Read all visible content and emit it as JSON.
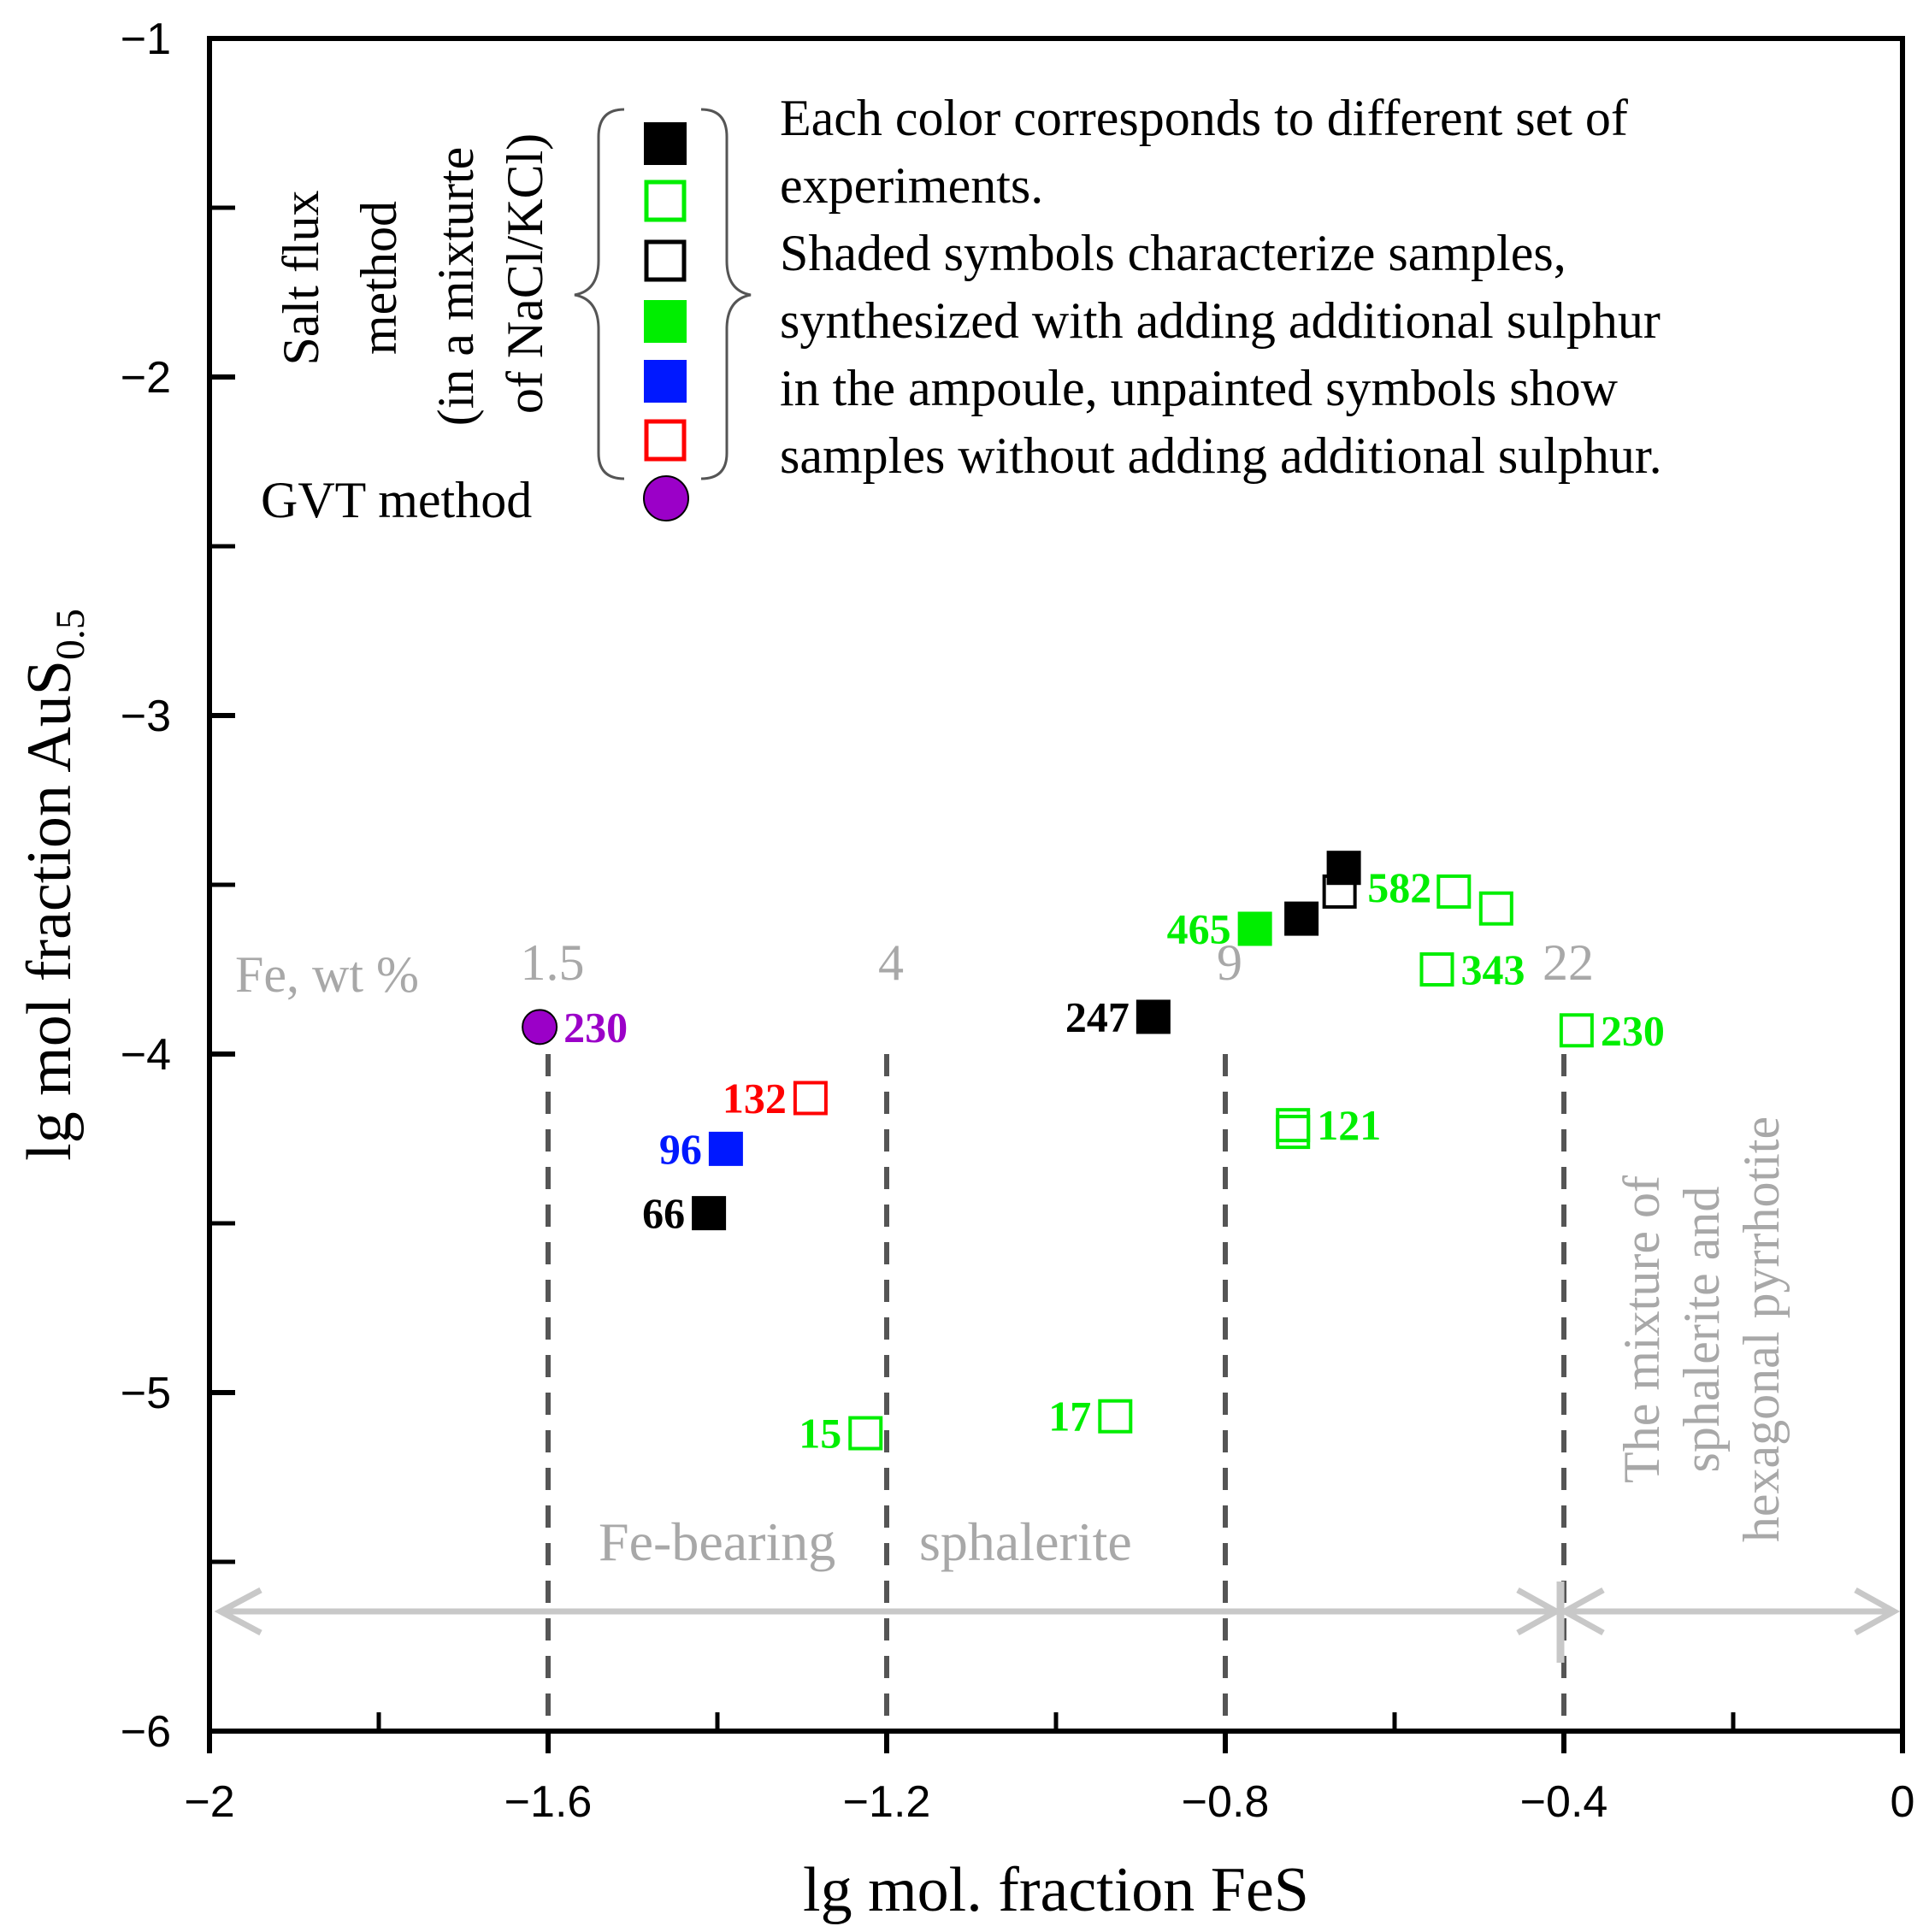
{
  "chart_data": {
    "type": "scatter",
    "title": "",
    "xlabel": "lg mol. fraction FeS",
    "ylabel_main": "lg mol fraction AuS",
    "ylabel_sub": "0.5",
    "xlim": [
      -2,
      0
    ],
    "ylim": [
      -6,
      -1
    ],
    "x_ticks": [
      "−2",
      "−1.6",
      "−1.2",
      "−0.8",
      "−0.4",
      "0"
    ],
    "x_tick_values": [
      -2,
      -1.6,
      -1.2,
      -0.8,
      -0.4,
      0
    ],
    "y_ticks": [
      "−1",
      "−2",
      "−3",
      "−4",
      "−5",
      "−6"
    ],
    "y_tick_values": [
      -1,
      -2,
      -3,
      -4,
      -5,
      -6
    ],
    "y_minor_tick_values": [
      -1.5,
      -2.5,
      -3.5,
      -4.5,
      -5.5
    ],
    "x_minor_tick_values": [
      -1.8,
      -1.4,
      -1.0,
      -0.6,
      -0.2
    ],
    "grid": false,
    "colors": {
      "black": "#000000",
      "green": "#00ee00",
      "blue": "#0018ff",
      "red": "#ff0000",
      "purple": "#9b00c8",
      "annotation_gray": "#a8a8a8",
      "dashed": "#555555"
    },
    "series": [
      {
        "name": "black filled",
        "marker": "square",
        "color": "#000000",
        "filled": true,
        "points": [
          {
            "x": -1.41,
            "y": -4.47,
            "label": "66"
          },
          {
            "x": -0.885,
            "y": -3.89,
            "label": "247"
          },
          {
            "x": -0.71,
            "y": -3.6,
            "label": ""
          },
          {
            "x": -0.66,
            "y": -3.45,
            "label": ""
          }
        ]
      },
      {
        "name": "green open",
        "marker": "square",
        "color": "#00ee00",
        "filled": false,
        "points": [
          {
            "x": -1.225,
            "y": -5.12,
            "label": "15"
          },
          {
            "x": -0.93,
            "y": -5.07,
            "label": "17"
          },
          {
            "x": -0.72,
            "y": -4.21,
            "label": "121"
          },
          {
            "x": -0.72,
            "y": -4.23,
            "label": ""
          },
          {
            "x": -0.55,
            "y": -3.75,
            "label": "343"
          },
          {
            "x": -0.53,
            "y": -3.52,
            "label": "582"
          },
          {
            "x": -0.48,
            "y": -3.57,
            "label": ""
          },
          {
            "x": -0.385,
            "y": -3.93,
            "label": "230"
          }
        ]
      },
      {
        "name": "black open",
        "marker": "square",
        "color": "#000000",
        "filled": false,
        "points": [
          {
            "x": -0.665,
            "y": -3.52,
            "label": ""
          }
        ]
      },
      {
        "name": "green filled",
        "marker": "square",
        "color": "#00ee00",
        "filled": true,
        "points": [
          {
            "x": -0.765,
            "y": -3.63,
            "label": "465"
          }
        ]
      },
      {
        "name": "blue filled",
        "marker": "square",
        "color": "#0018ff",
        "filled": true,
        "points": [
          {
            "x": -1.39,
            "y": -4.28,
            "label": "96"
          }
        ]
      },
      {
        "name": "red open",
        "marker": "square",
        "color": "#ff0000",
        "filled": false,
        "points": [
          {
            "x": -1.29,
            "y": -4.13,
            "label": "132"
          }
        ]
      },
      {
        "name": "GVT method",
        "marker": "circle",
        "color": "#9b00c8",
        "filled": true,
        "points": [
          {
            "x": -1.61,
            "y": -3.92,
            "label": "230"
          }
        ]
      }
    ],
    "fe_lines": [
      {
        "x": -1.6,
        "label": "1.5"
      },
      {
        "x": -1.2,
        "label": "4"
      },
      {
        "x": -0.8,
        "label": "9"
      },
      {
        "x": -0.4,
        "label": "22"
      }
    ],
    "annotations": {
      "fe_title": "Fe, wt %",
      "fe_bearing_left": "Fe-bearing",
      "fe_bearing_right": "sphalerite",
      "mixture_lines": [
        "The mixture of",
        "sphalerite and",
        "hexagonal pyrrhotite"
      ]
    },
    "legend": {
      "salt_flux_lines": [
        "Salt flux",
        "method",
        "(in a mixturte",
        "of NaCl/KCl)"
      ],
      "gvt_label": "GVT method",
      "description_lines": [
        "Each color corresponds to different set of",
        "experiments.",
        "Shaded symbols characterize samples,",
        "synthesized with adding  additional sulphur",
        "in the  ampoule, unpainted symbols show",
        "samples without adding additional sulphur."
      ]
    }
  }
}
